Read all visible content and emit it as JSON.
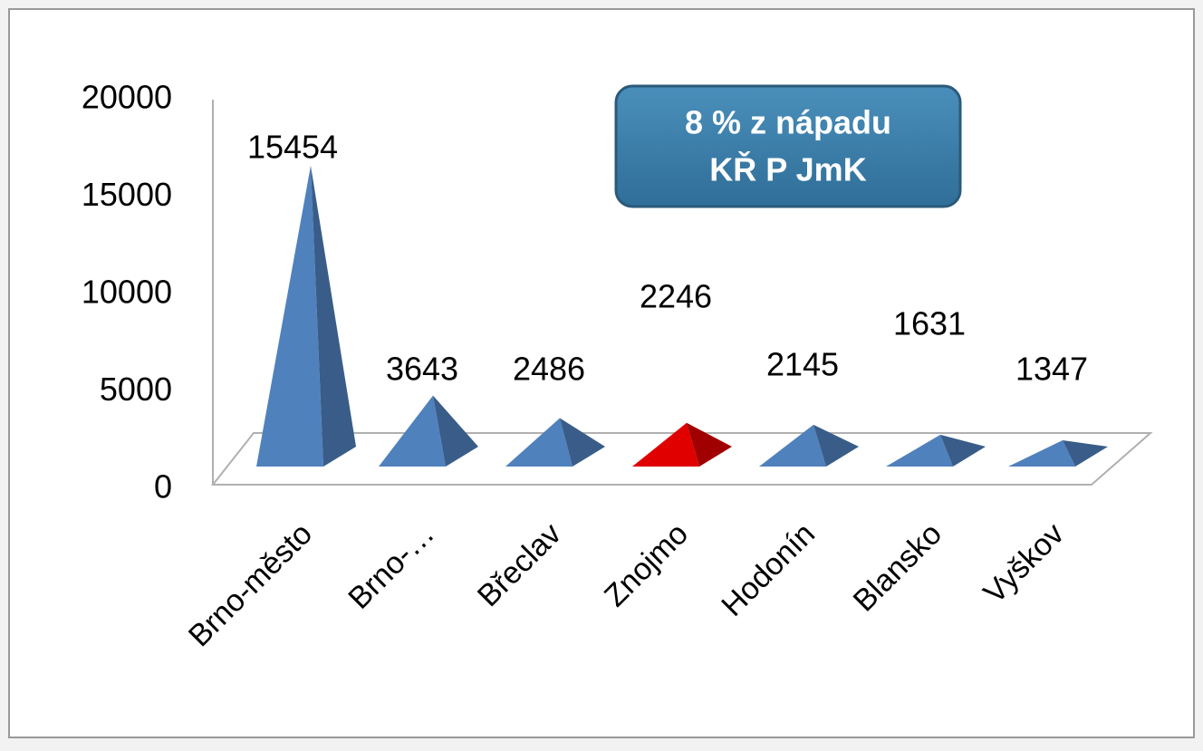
{
  "chart_data": {
    "type": "pyramid",
    "categories": [
      "Brno-město",
      "Brno-…",
      "Břeclav",
      "Znojmo",
      "Hodonín",
      "Blansko",
      "Vyškov"
    ],
    "values": [
      15454,
      3643,
      2486,
      2246,
      2145,
      1631,
      1347
    ],
    "colors": [
      "#4f81bd",
      "#4f81bd",
      "#4f81bd",
      "#e00000",
      "#4f81bd",
      "#4f81bd",
      "#4f81bd"
    ],
    "ylim": [
      0,
      20000
    ],
    "yticks": [
      0,
      5000,
      10000,
      15000,
      20000
    ],
    "annotation": [
      "8 % z nápadu",
      "KŘ P JmK"
    ]
  }
}
